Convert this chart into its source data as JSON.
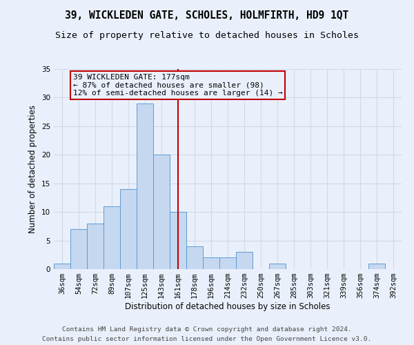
{
  "title": "39, WICKLEDEN GATE, SCHOLES, HOLMFIRTH, HD9 1QT",
  "subtitle": "Size of property relative to detached houses in Scholes",
  "xlabel": "Distribution of detached houses by size in Scholes",
  "ylabel": "Number of detached properties",
  "footer_line1": "Contains HM Land Registry data © Crown copyright and database right 2024.",
  "footer_line2": "Contains public sector information licensed under the Open Government Licence v3.0.",
  "bin_labels": [
    "36sqm",
    "54sqm",
    "72sqm",
    "89sqm",
    "107sqm",
    "125sqm",
    "143sqm",
    "161sqm",
    "178sqm",
    "196sqm",
    "214sqm",
    "232sqm",
    "250sqm",
    "267sqm",
    "285sqm",
    "303sqm",
    "321sqm",
    "339sqm",
    "356sqm",
    "374sqm",
    "392sqm"
  ],
  "bar_heights": [
    1,
    7,
    8,
    11,
    14,
    29,
    20,
    10,
    4,
    2,
    2,
    3,
    0,
    1,
    0,
    0,
    0,
    0,
    0,
    1,
    0
  ],
  "bar_color": "#c5d8f0",
  "bar_edgecolor": "#5b9bd5",
  "vline_x": 7.5,
  "vline_color": "#c00000",
  "annotation_text": "39 WICKLEDEN GATE: 177sqm\n← 87% of detached houses are smaller (98)\n12% of semi-detached houses are larger (14) →",
  "ylim": [
    0,
    35
  ],
  "yticks": [
    0,
    5,
    10,
    15,
    20,
    25,
    30,
    35
  ],
  "grid_color": "#d0d8e8",
  "bg_color": "#eaf0fb",
  "title_fontsize": 10.5,
  "subtitle_fontsize": 9.5,
  "axis_label_fontsize": 8.5,
  "tick_fontsize": 7.5,
  "footer_fontsize": 6.8,
  "annot_fontsize": 8
}
